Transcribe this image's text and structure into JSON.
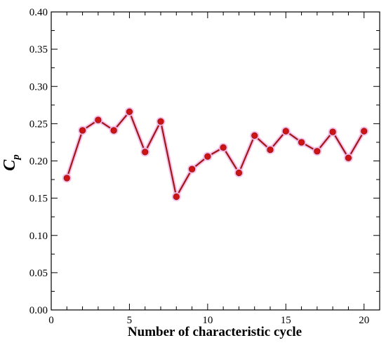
{
  "chart_data": {
    "type": "line",
    "title": "",
    "xlabel": "Number of characteristic cycle",
    "ylabel": "C",
    "ylabel_subscript": "p",
    "xlim": [
      0,
      21
    ],
    "ylim": [
      0.0,
      0.4
    ],
    "x_ticks": [
      0,
      5,
      10,
      15,
      20
    ],
    "x_tick_labels": [
      "0",
      "5",
      "10",
      "15",
      "20"
    ],
    "y_ticks": [
      0.0,
      0.05,
      0.1,
      0.15,
      0.2,
      0.25,
      0.3,
      0.35,
      0.4
    ],
    "y_tick_labels": [
      "0.00",
      "0.05",
      "0.10",
      "0.15",
      "0.20",
      "0.25",
      "0.30",
      "0.35",
      "0.40"
    ],
    "grid": false,
    "colors": {
      "line": "#a01818",
      "marker": "#cc1414",
      "halo": "#f5b8e6"
    },
    "series": [
      {
        "x": [
          1,
          2,
          3,
          4,
          5,
          6,
          7,
          8,
          9,
          10,
          11,
          12,
          13,
          14,
          15,
          16,
          17,
          18,
          19,
          20
        ],
        "values": [
          0.177,
          0.241,
          0.255,
          0.241,
          0.266,
          0.212,
          0.253,
          0.152,
          0.189,
          0.206,
          0.218,
          0.184,
          0.234,
          0.215,
          0.24,
          0.225,
          0.213,
          0.239,
          0.204,
          0.24
        ]
      }
    ]
  }
}
